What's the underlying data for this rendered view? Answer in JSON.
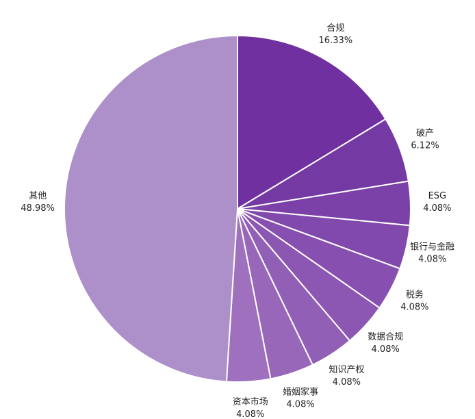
{
  "chart_data": {
    "type": "pie",
    "categories": [
      "合规",
      "破产",
      "ESG",
      "银行与金融",
      "税务",
      "数据合规",
      "知识产权",
      "婚姻家事",
      "资本市场",
      "其他"
    ],
    "values": [
      16.33,
      6.12,
      4.08,
      4.08,
      4.08,
      4.08,
      4.08,
      4.08,
      4.08,
      48.98
    ],
    "value_labels": [
      "16.33%",
      "6.12%",
      "4.08%",
      "4.08%",
      "4.08%",
      "4.08%",
      "4.08%",
      "4.08%",
      "4.08%",
      "48.98%"
    ],
    "colors": [
      "#7030a0",
      "#7539a4",
      "#7b41a8",
      "#8149ac",
      "#8750b0",
      "#8c57b3",
      "#925fb7",
      "#9867ba",
      "#9e70be",
      "#ad8fca"
    ]
  }
}
